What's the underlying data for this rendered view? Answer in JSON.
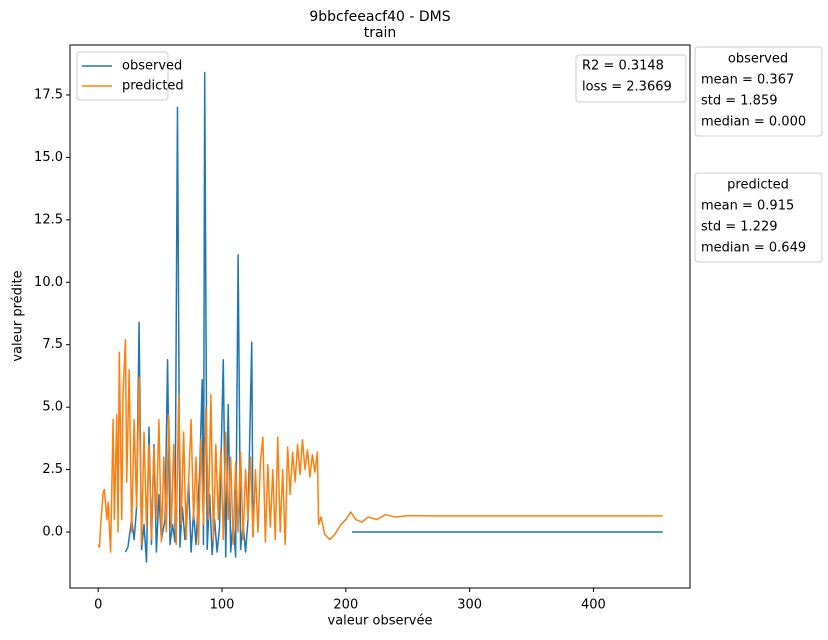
{
  "chart_data": {
    "type": "line",
    "title": "9bbcfeeacf40 - DMS",
    "subtitle": "train",
    "x_label": "valeur observée",
    "y_label": "valeur prédite",
    "xlim": [
      -22.8,
      478
    ],
    "ylim": [
      -2.24,
      19.5
    ],
    "xticks": [
      0,
      100,
      200,
      300,
      400
    ],
    "yticks": [
      {
        "value": 0,
        "label": "0.0"
      },
      2.5,
      {
        "value": 5,
        "label": "5.0"
      },
      7.5,
      {
        "value": 10,
        "label": "10.0"
      },
      12.5,
      {
        "value": 15,
        "label": "15.0"
      },
      17.5
    ],
    "grid": false,
    "legend": "upper left",
    "series": [
      {
        "name": "observed",
        "color": "#1f77b4",
        "x": [
          22,
          24,
          27,
          29,
          31,
          33,
          35,
          37,
          39,
          41,
          43,
          45,
          47,
          49,
          51,
          54,
          56,
          58,
          60,
          62,
          64,
          66,
          68,
          70,
          73,
          75,
          77,
          79,
          82,
          84,
          85,
          86,
          88,
          90,
          92,
          94,
          96,
          98,
          101,
          103,
          105,
          107,
          109,
          111,
          113,
          115,
          117,
          119,
          121,
          124,
          125,
          165,
          205,
          456
        ],
        "values": [
          -0.8,
          -0.6,
          0.5,
          -0.3,
          1,
          8.4,
          -0.7,
          0.3,
          -1.2,
          4.2,
          -0.5,
          3.5,
          -0.8,
          1.5,
          -0.3,
          0.5,
          6.9,
          -0.5,
          0.3,
          -0.4,
          17,
          -0.6,
          1,
          -0.3,
          2,
          -0.8,
          0.8,
          -0.5,
          2.5,
          6.1,
          -0.5,
          18.4,
          -0.7,
          1.5,
          -0.9,
          0.5,
          -0.8,
          0.2,
          6.9,
          -1,
          5.1,
          -0.8,
          0.5,
          -1,
          11.1,
          -0.7,
          0.3,
          -0.8,
          0.5,
          7.6,
          -0.2,
          null,
          0,
          0
        ]
      },
      {
        "name": "predicted",
        "color": "#ff7f0e",
        "x": [
          0,
          1,
          2,
          4,
          5,
          7,
          8,
          10,
          12,
          13,
          15,
          16,
          17,
          19,
          20,
          22,
          23,
          25,
          27,
          29,
          31,
          33,
          35,
          37,
          39,
          41,
          43,
          45,
          47,
          49,
          51,
          53,
          55,
          57,
          59,
          61,
          63,
          65,
          67,
          69,
          71,
          73,
          75,
          77,
          79,
          81,
          83,
          85,
          87,
          89,
          91,
          93,
          95,
          97,
          99,
          101,
          103,
          105,
          107,
          109,
          111,
          113,
          115,
          117,
          119,
          121,
          123,
          125,
          127,
          129,
          131,
          133,
          135,
          137,
          139,
          141,
          143,
          145,
          147,
          149,
          151,
          153,
          155,
          157,
          159,
          161,
          163,
          165,
          167,
          169,
          171,
          173,
          175,
          177,
          178,
          180,
          183,
          187,
          191,
          196,
          200,
          204,
          208,
          213,
          218,
          225,
          232,
          240,
          250,
          270,
          456
        ],
        "values": [
          -0.5,
          -0.6,
          0.3,
          1.6,
          1.7,
          0.5,
          1.2,
          -0.8,
          4.5,
          0.5,
          4.7,
          0,
          7.2,
          0.5,
          5.5,
          7.7,
          2,
          6.5,
          0,
          4.5,
          1,
          6.2,
          -0.5,
          4,
          0.2,
          3.5,
          -0.3,
          3.4,
          0.5,
          4.5,
          -0.4,
          3,
          0,
          4.7,
          0.2,
          3.5,
          -0.5,
          5.5,
          0.3,
          4,
          -0.3,
          2,
          4.5,
          0.5,
          3,
          -0.5,
          3.7,
          0.3,
          5,
          0.5,
          5.5,
          -0.4,
          3.5,
          0.5,
          3.3,
          -0.3,
          4,
          0.5,
          3,
          -0.5,
          2.8,
          0,
          3.2,
          -0.3,
          2.5,
          0.5,
          3,
          -0.2,
          2.5,
          0,
          2.8,
          3.8,
          -0.4,
          2.7,
          0.2,
          2.5,
          -0.3,
          3.8,
          0,
          2.5,
          -0.5,
          3.4,
          1.5,
          3.2,
          2,
          3.5,
          2.3,
          3.7,
          2.5,
          3.3,
          2.2,
          3.1,
          2.4,
          3.2,
          0.3,
          0.6,
          -0.1,
          -0.3,
          -0.1,
          0.3,
          0.5,
          0.8,
          0.5,
          0.4,
          0.6,
          0.5,
          0.7,
          0.6,
          0.66,
          0.65,
          0.65
        ]
      }
    ],
    "stats_box": [
      "R2 = 0.3148",
      "loss = 2.3669"
    ],
    "side_boxes": [
      {
        "title": "observed",
        "lines": [
          "mean = 0.367",
          "std = 1.859",
          "median = 0.000"
        ]
      },
      {
        "title": "predicted",
        "lines": [
          "mean = 0.915",
          "std = 1.229",
          "median = 0.649"
        ]
      }
    ]
  }
}
